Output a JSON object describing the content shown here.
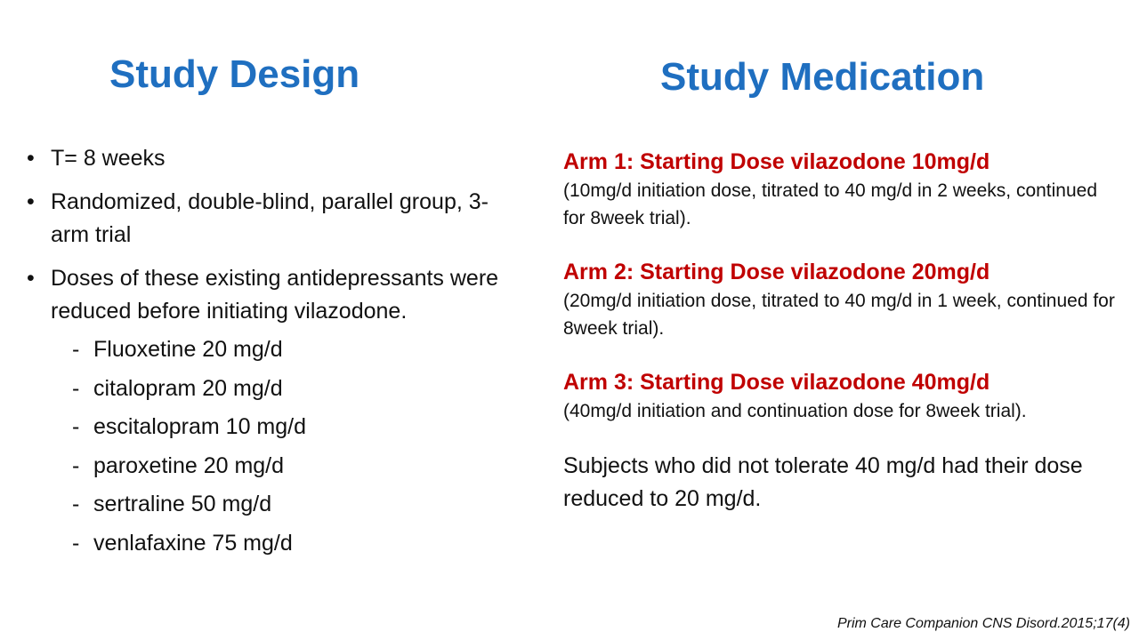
{
  "left": {
    "title": "Study Design",
    "bullets": [
      "T= 8 weeks",
      "Randomized, double-blind, parallel group, 3-arm trial",
      "Doses of these existing antidepressants were reduced before initiating vilazodone."
    ],
    "drugs": [
      "Fluoxetine 20 mg/d",
      "citalopram 20 mg/d",
      "escitalopram 10 mg/d",
      "paroxetine 20 mg/d",
      "sertraline 50 mg/d",
      "venlafaxine 75 mg/d"
    ]
  },
  "right": {
    "title": "Study Medication",
    "arms": [
      {
        "title": "Arm 1: Starting Dose vilazodone 10mg/d",
        "detail": "(10mg/d initiation dose, titrated to 40 mg/d in 2 weeks, continued for 8week trial)."
      },
      {
        "title": "Arm 2: Starting Dose vilazodone 20mg/d",
        "detail": "(20mg/d initiation dose, titrated to 40 mg/d in 1 week, continued for 8week trial)."
      },
      {
        "title": "Arm 3: Starting Dose vilazodone 40mg/d",
        "detail": "(40mg/d initiation and continuation dose for 8week trial)."
      }
    ],
    "note": "Subjects who did not tolerate 40 mg/d had their dose reduced to 20 mg/d."
  },
  "citation": "Prim Care Companion CNS Disord.2015;17(4)",
  "colors": {
    "title": "#1f6fc0",
    "arm_title": "#c00000",
    "text": "#111111"
  }
}
